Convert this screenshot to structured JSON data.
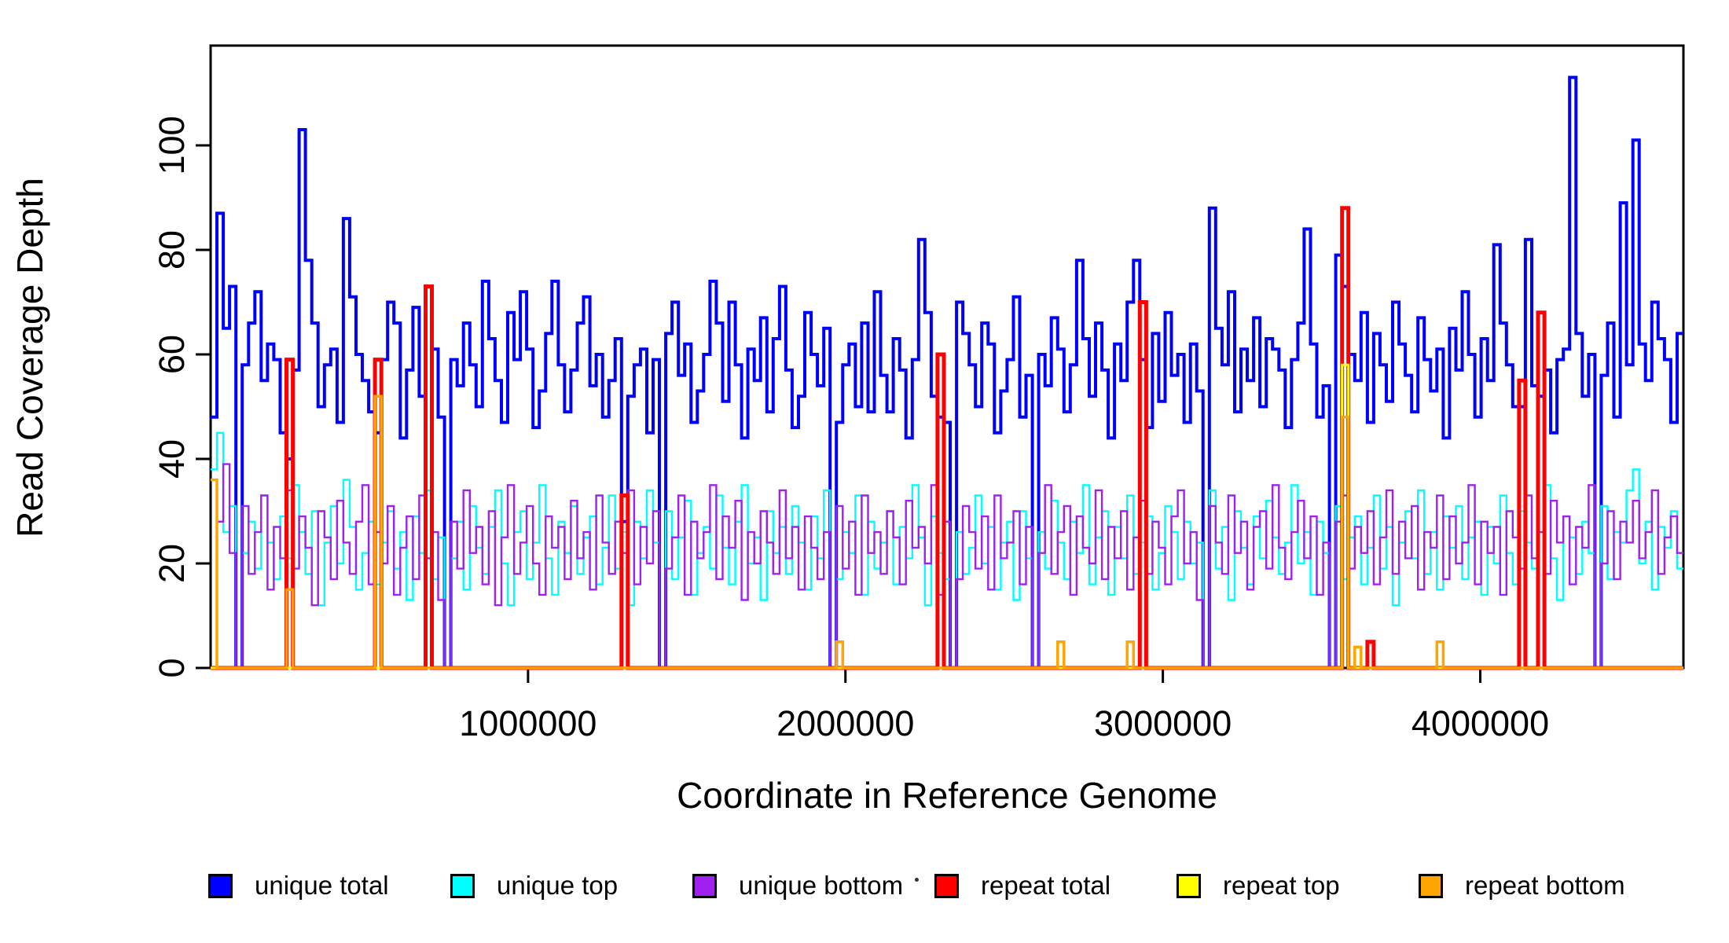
{
  "chart_data": {
    "type": "line",
    "subtype": "step-coverage-plot",
    "title": "",
    "xlabel": "Coordinate in Reference Genome",
    "ylabel": "Read Coverage Depth",
    "x_range": [
      0,
      4640000
    ],
    "y_range": [
      0,
      115
    ],
    "grid": "off",
    "box": "on",
    "legend_position": "bottom",
    "y_ticks": [
      0,
      20,
      40,
      60,
      80,
      100
    ],
    "x_ticks": [
      {
        "value": 1000000,
        "label": "1000000"
      },
      {
        "value": 2000000,
        "label": "2000000"
      },
      {
        "value": 3000000,
        "label": "3000000"
      },
      {
        "value": 4000000,
        "label": "4000000"
      }
    ],
    "n_bins": 233,
    "bin_size_bp": 19914,
    "series_order": [
      "unique_total",
      "unique_top",
      "unique_bottom",
      "repeat_total",
      "repeat_top",
      "repeat_bottom"
    ],
    "series": {
      "unique_total": {
        "label": "unique total",
        "color": "#0000FF",
        "line_width": 4,
        "values": [
          48,
          87,
          65,
          73,
          0,
          58,
          66,
          72,
          55,
          62,
          59,
          45,
          40,
          57,
          103,
          78,
          66,
          50,
          58,
          61,
          47,
          86,
          71,
          60,
          55,
          49,
          45,
          59,
          70,
          66,
          44,
          57,
          69,
          52,
          73,
          61,
          48,
          0,
          59,
          54,
          66,
          58,
          50,
          74,
          63,
          55,
          47,
          68,
          59,
          72,
          61,
          46,
          53,
          64,
          74,
          58,
          49,
          57,
          66,
          71,
          54,
          60,
          48,
          55,
          63,
          28,
          52,
          58,
          61,
          45,
          59,
          0,
          64,
          70,
          56,
          62,
          47,
          53,
          60,
          74,
          66,
          51,
          70,
          58,
          44,
          61,
          55,
          67,
          49,
          63,
          73,
          57,
          46,
          52,
          68,
          60,
          54,
          65,
          0,
          47,
          58,
          62,
          50,
          66,
          49,
          72,
          56,
          49,
          63,
          57,
          44,
          59,
          82,
          68,
          52,
          48,
          47,
          0,
          70,
          64,
          58,
          50,
          66,
          62,
          45,
          53,
          59,
          71,
          48,
          56,
          0,
          60,
          54,
          67,
          61,
          49,
          58,
          78,
          63,
          52,
          66,
          57,
          44,
          62,
          55,
          70,
          78,
          59,
          46,
          64,
          51,
          68,
          56,
          60,
          47,
          62,
          53,
          0,
          88,
          65,
          58,
          72,
          49,
          61,
          55,
          67,
          50,
          63,
          61,
          57,
          46,
          59,
          66,
          84,
          62,
          48,
          54,
          0,
          79,
          73,
          60,
          55,
          68,
          47,
          64,
          58,
          51,
          70,
          62,
          56,
          49,
          67,
          59,
          53,
          61,
          44,
          65,
          57,
          72,
          60,
          48,
          63,
          55,
          81,
          66,
          58,
          50,
          50,
          82,
          54,
          52,
          57,
          45,
          59,
          61,
          113,
          64,
          52,
          60,
          0,
          56,
          66,
          48,
          89,
          58,
          101,
          62,
          55,
          70,
          63,
          59,
          47,
          64
        ]
      },
      "unique_top": {
        "label": "unique top",
        "color": "#00FFFF",
        "line_width": 2.4,
        "values": [
          38,
          45,
          26,
          31,
          0,
          22,
          28,
          19,
          33,
          24,
          17,
          29,
          21,
          35,
          26,
          18,
          30,
          12,
          24,
          31,
          20,
          36,
          27,
          15,
          22,
          28,
          16,
          24,
          30,
          19,
          26,
          13,
          29,
          22,
          34,
          17,
          25,
          0,
          21,
          28,
          15,
          31,
          23,
          18,
          27,
          34,
          20,
          12,
          26,
          30,
          17,
          24,
          35,
          21,
          14,
          28,
          22,
          31,
          18,
          25,
          29,
          16,
          23,
          33,
          19,
          26,
          12,
          28,
          21,
          34,
          24,
          0,
          30,
          17,
          25,
          32,
          14,
          22,
          27,
          19,
          33,
          23,
          16,
          28,
          35,
          20,
          25,
          13,
          30,
          22,
          27,
          18,
          31,
          24,
          15,
          29,
          21,
          34,
          0,
          17,
          26,
          22,
          33,
          14,
          28,
          19,
          24,
          30,
          16,
          27,
          21,
          35,
          25,
          12,
          29,
          22,
          17,
          0,
          26,
          18,
          23,
          33,
          20,
          27,
          15,
          24,
          28,
          13,
          30,
          21,
          0,
          26,
          19,
          32,
          24,
          17,
          28,
          22,
          35,
          16,
          25,
          30,
          14,
          27,
          21,
          33,
          18,
          24,
          29,
          15,
          22,
          31,
          26,
          17,
          28,
          20,
          24,
          0,
          34,
          19,
          27,
          13,
          30,
          23,
          16,
          29,
          21,
          32,
          25,
          18,
          24,
          35,
          20,
          26,
          14,
          28,
          22,
          0,
          31,
          17,
          25,
          29,
          16,
          23,
          33,
          19,
          27,
          12,
          24,
          30,
          21,
          34,
          18,
          26,
          15,
          29,
          23,
          31,
          17,
          25,
          28,
          14,
          27,
          20,
          33,
          22,
          16,
          30,
          24,
          19,
          26,
          35,
          21,
          13,
          29,
          25,
          18,
          28,
          22,
          0,
          31,
          17,
          26,
          24,
          34,
          38,
          20,
          28,
          15,
          27,
          23,
          30,
          19
        ]
      },
      "unique_bottom": {
        "label": "unique bottom",
        "color": "#A020F0",
        "line_width": 2.4,
        "values": [
          36,
          28,
          39,
          22,
          0,
          31,
          18,
          26,
          33,
          15,
          27,
          21,
          34,
          19,
          29,
          23,
          12,
          30,
          25,
          17,
          32,
          24,
          18,
          28,
          35,
          16,
          26,
          20,
          31,
          14,
          23,
          29,
          17,
          33,
          21,
          26,
          13,
          0,
          28,
          19,
          34,
          22,
          27,
          16,
          30,
          12,
          25,
          35,
          18,
          24,
          31,
          20,
          14,
          29,
          23,
          27,
          17,
          32,
          21,
          26,
          15,
          33,
          24,
          18,
          28,
          22,
          34,
          16,
          27,
          20,
          30,
          0,
          19,
          25,
          33,
          14,
          28,
          21,
          26,
          35,
          17,
          29,
          23,
          32,
          13,
          26,
          20,
          30,
          24,
          18,
          34,
          21,
          27,
          15,
          29,
          23,
          17,
          26,
          0,
          31,
          19,
          28,
          14,
          33,
          22,
          26,
          18,
          30,
          25,
          16,
          32,
          23,
          27,
          20,
          35,
          14,
          28,
          0,
          17,
          31,
          26,
          19,
          29,
          15,
          33,
          21,
          24,
          30,
          16,
          27,
          0,
          22,
          35,
          18,
          26,
          31,
          14,
          29,
          23,
          20,
          34,
          17,
          27,
          21,
          30,
          15,
          25,
          32,
          18,
          28,
          23,
          16,
          29,
          34,
          20,
          26,
          13,
          0,
          31,
          24,
          18,
          33,
          22,
          28,
          15,
          27,
          30,
          19,
          35,
          23,
          17,
          26,
          32,
          21,
          29,
          14,
          24,
          0,
          28,
          33,
          19,
          27,
          22,
          30,
          16,
          25,
          34,
          18,
          28,
          21,
          31,
          15,
          26,
          23,
          33,
          17,
          29,
          20,
          24,
          35,
          16,
          28,
          22,
          27,
          14,
          30,
          25,
          19,
          33,
          21,
          26,
          18,
          32,
          24,
          29,
          16,
          27,
          23,
          35,
          0,
          20,
          30,
          17,
          28,
          24,
          32,
          21,
          26,
          34,
          18,
          25,
          29,
          22
        ]
      },
      "repeat_total": {
        "label": "repeat total",
        "color": "#FF0000",
        "line_width": 5,
        "default": 0,
        "sparse": {
          "12": 59,
          "26": 59,
          "34": 73,
          "65": 33,
          "115": 60,
          "147": 70,
          "179": 88,
          "183": 5,
          "207": 55,
          "210": 68
        }
      },
      "repeat_top": {
        "label": "repeat top",
        "color": "#FFFF00",
        "line_width": 3,
        "default": 0,
        "sparse": {
          "179": 58
        }
      },
      "repeat_bottom": {
        "label": "repeat bottom",
        "color": "#FFA500",
        "line_width": 3.5,
        "default": 0,
        "sparse": {
          "0": 36,
          "12": 15,
          "26": 52,
          "99": 5,
          "134": 5,
          "145": 5,
          "179": 48,
          "181": 4,
          "194": 5
        }
      }
    }
  },
  "artifact_dot": "·"
}
